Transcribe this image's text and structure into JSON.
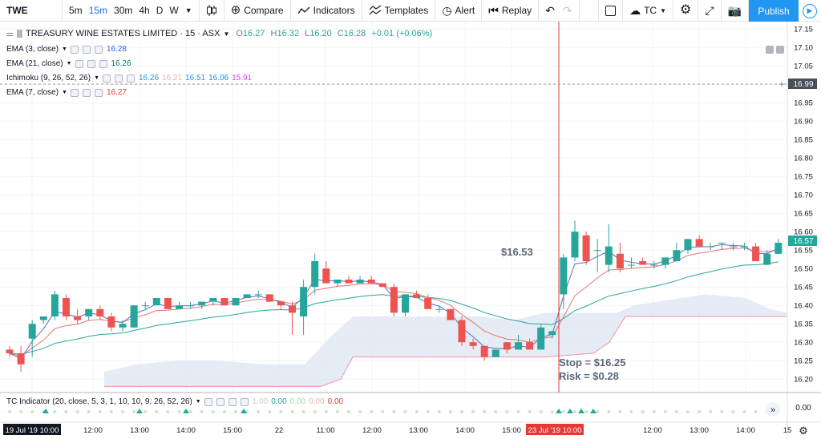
{
  "toolbar": {
    "symbol": "TWE",
    "timeframes": [
      "5m",
      "15m",
      "30m",
      "4h",
      "D",
      "W"
    ],
    "active_timeframe": "15m",
    "compare": "Compare",
    "indicators": "Indicators",
    "templates": "Templates",
    "alert": "Alert",
    "replay": "Replay",
    "tc": "TC",
    "publish": "Publish"
  },
  "legend": {
    "title": "TREASURY WINE ESTATES LIMITED · 15 · ASX",
    "open_label": "O",
    "open": "16.27",
    "high_label": "H",
    "high": "16.32",
    "low_label": "L",
    "low": "16.20",
    "close_label": "C",
    "close": "16.28",
    "change": "+0.01 (+0.06%)",
    "ema3_label": "EMA (3, close)",
    "ema3_value": "16.28",
    "ema21_label": "EMA (21, close)",
    "ema21_value": "16.26",
    "ichimoku_label": "Ichimoku (9, 26, 52, 26)",
    "ichimoku_values": [
      "16.26",
      "16.21",
      "16.51",
      "16.06",
      "15.91"
    ],
    "ema7_label": "EMA (7, close)",
    "ema7_value": "16.27"
  },
  "price_axis": {
    "ticks": [
      "17.15",
      "17.10",
      "17.05",
      "17.00",
      "16.95",
      "16.90",
      "16.85",
      "16.80",
      "16.75",
      "16.70",
      "16.65",
      "16.60",
      "16.55",
      "16.50",
      "16.45",
      "16.40",
      "16.35",
      "16.30",
      "16.25",
      "16.20"
    ],
    "marker_high": "16.99",
    "marker_last": "16.57",
    "indicator_tick": "0.00"
  },
  "time_axis": {
    "labels": [
      "19 Jul '19  10:00",
      "12:00",
      "13:00",
      "14:00",
      "15:00",
      "22",
      "11:00",
      "12:00",
      "13:00",
      "14:00",
      "15:00",
      "23 Jul '19  10:00",
      "12:00",
      "13:00",
      "14:00",
      "15"
    ]
  },
  "annotations": {
    "price_note": "$16.53",
    "stop": "Stop = $16.25",
    "risk": "Risk = $0.28"
  },
  "indicator_pane": {
    "label": "TC Indicator (20, close, 5, 3, 1, 10, 10, 9, 26, 52, 26)",
    "values": [
      "1.00",
      "0.00",
      "0.00",
      "0.00",
      "0.00"
    ]
  },
  "colors": {
    "up": "#26a69a",
    "down": "#ef5350",
    "ema3": "#2962ff",
    "ema21": "#26a69a",
    "cloud": "#dbe4f0",
    "accent": "#2196f3",
    "vline": "#e53935"
  },
  "chart_data": {
    "type": "candlestick",
    "ylim": [
      16.17,
      17.17
    ],
    "candles": [
      [
        16.28,
        16.29,
        16.26,
        16.27
      ],
      [
        16.27,
        16.29,
        16.22,
        16.24
      ],
      [
        16.31,
        16.36,
        16.26,
        16.35
      ],
      [
        16.36,
        16.37,
        16.35,
        16.37
      ],
      [
        16.37,
        16.44,
        16.36,
        16.43
      ],
      [
        16.42,
        16.43,
        16.36,
        16.37
      ],
      [
        16.37,
        16.39,
        16.35,
        16.36
      ],
      [
        16.37,
        16.39,
        16.36,
        16.39
      ],
      [
        16.39,
        16.4,
        16.36,
        16.37
      ],
      [
        16.37,
        16.38,
        16.33,
        16.34
      ],
      [
        16.34,
        16.36,
        16.33,
        16.35
      ],
      [
        16.34,
        16.4,
        16.34,
        16.4
      ],
      [
        16.4,
        16.41,
        16.39,
        16.4
      ],
      [
        16.4,
        16.42,
        16.4,
        16.42
      ],
      [
        16.42,
        16.42,
        16.39,
        16.39
      ],
      [
        16.39,
        16.41,
        16.39,
        16.4
      ],
      [
        16.4,
        16.41,
        16.39,
        16.4
      ],
      [
        16.4,
        16.41,
        16.39,
        16.41
      ],
      [
        16.41,
        16.42,
        16.4,
        16.42
      ],
      [
        16.42,
        16.42,
        16.4,
        16.4
      ],
      [
        16.4,
        16.42,
        16.4,
        16.42
      ],
      [
        16.42,
        16.43,
        16.42,
        16.43
      ],
      [
        16.43,
        16.44,
        16.42,
        16.43
      ],
      [
        16.43,
        16.43,
        16.41,
        16.41
      ],
      [
        16.41,
        16.41,
        16.39,
        16.4
      ],
      [
        16.4,
        16.41,
        16.32,
        16.38
      ],
      [
        16.37,
        16.47,
        16.32,
        16.45
      ],
      [
        16.45,
        16.54,
        16.43,
        16.52
      ],
      [
        16.5,
        16.52,
        16.46,
        16.46
      ],
      [
        16.46,
        16.47,
        16.45,
        16.47
      ],
      [
        16.47,
        16.48,
        16.46,
        16.46
      ],
      [
        16.46,
        16.48,
        16.46,
        16.47
      ],
      [
        16.47,
        16.48,
        16.46,
        16.46
      ],
      [
        16.46,
        16.46,
        16.45,
        16.45
      ],
      [
        16.45,
        16.46,
        16.37,
        16.38
      ],
      [
        16.38,
        16.43,
        16.37,
        16.43
      ],
      [
        16.43,
        16.44,
        16.42,
        16.42
      ],
      [
        16.42,
        16.43,
        16.39,
        16.39
      ],
      [
        16.39,
        16.4,
        16.38,
        16.39
      ],
      [
        16.39,
        16.39,
        16.36,
        16.36
      ],
      [
        16.36,
        16.37,
        16.29,
        16.3
      ],
      [
        16.3,
        16.31,
        16.28,
        16.29
      ],
      [
        16.29,
        16.29,
        16.25,
        16.26
      ],
      [
        16.26,
        16.28,
        16.26,
        16.28
      ],
      [
        16.3,
        16.3,
        16.27,
        16.28
      ],
      [
        16.28,
        16.32,
        16.28,
        16.3
      ],
      [
        16.3,
        16.31,
        16.28,
        16.28
      ],
      [
        16.28,
        16.35,
        16.28,
        16.34
      ],
      [
        16.32,
        16.33,
        16.31,
        16.33
      ],
      [
        16.43,
        16.54,
        16.39,
        16.53
      ],
      [
        16.53,
        16.63,
        16.52,
        16.6
      ],
      [
        16.59,
        16.6,
        16.51,
        16.52
      ],
      [
        16.55,
        16.58,
        16.49,
        16.55
      ],
      [
        16.51,
        16.62,
        16.49,
        16.56
      ],
      [
        16.54,
        16.57,
        16.49,
        16.5
      ],
      [
        16.51,
        16.53,
        16.5,
        16.51
      ],
      [
        16.52,
        16.53,
        16.51,
        16.51
      ],
      [
        16.51,
        16.52,
        16.5,
        16.51
      ],
      [
        16.51,
        16.53,
        16.5,
        16.53
      ],
      [
        16.52,
        16.57,
        16.52,
        16.55
      ],
      [
        16.55,
        16.58,
        16.54,
        16.58
      ],
      [
        16.58,
        16.59,
        16.56,
        16.56
      ],
      [
        16.56,
        16.57,
        16.55,
        16.56
      ],
      [
        16.57,
        16.57,
        16.55,
        16.57
      ],
      [
        16.56,
        16.57,
        16.55,
        16.56
      ],
      [
        16.56,
        16.57,
        16.55,
        16.56
      ],
      [
        16.56,
        16.57,
        16.52,
        16.52
      ],
      [
        16.51,
        16.55,
        16.51,
        16.54
      ],
      [
        16.54,
        16.58,
        16.54,
        16.57
      ]
    ]
  }
}
